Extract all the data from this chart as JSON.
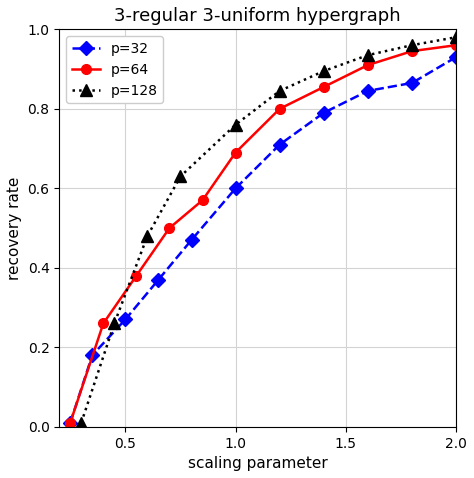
{
  "title": "3-regular 3-uniform hypergraph",
  "xlabel": "scaling parameter",
  "ylabel": "recovery rate",
  "xlim": [
    0.2,
    2.0
  ],
  "ylim": [
    0.0,
    1.0
  ],
  "series": [
    {
      "label": "p=32",
      "color": "blue",
      "linestyle": "--",
      "marker": "D",
      "markersize": 7,
      "x": [
        0.25,
        0.35,
        0.5,
        0.65,
        0.8,
        1.0,
        1.2,
        1.4,
        1.6,
        1.8,
        2.0
      ],
      "y": [
        0.01,
        0.18,
        0.27,
        0.37,
        0.47,
        0.6,
        0.71,
        0.79,
        0.845,
        0.865,
        0.93
      ]
    },
    {
      "label": "p=64",
      "color": "red",
      "linestyle": "-",
      "marker": "o",
      "markersize": 7,
      "x": [
        0.25,
        0.4,
        0.55,
        0.7,
        0.85,
        1.0,
        1.2,
        1.4,
        1.6,
        1.8,
        2.0
      ],
      "y": [
        0.01,
        0.26,
        0.38,
        0.5,
        0.57,
        0.69,
        0.8,
        0.855,
        0.91,
        0.945,
        0.96
      ]
    },
    {
      "label": "p=128",
      "color": "black",
      "linestyle": ":",
      "marker": "^",
      "markersize": 8,
      "x": [
        0.3,
        0.45,
        0.6,
        0.75,
        1.0,
        1.2,
        1.4,
        1.6,
        1.8,
        2.0
      ],
      "y": [
        0.01,
        0.26,
        0.48,
        0.63,
        0.76,
        0.845,
        0.895,
        0.935,
        0.96,
        0.98
      ]
    }
  ],
  "xticks": [
    0.5,
    1.0,
    1.5,
    2.0
  ],
  "yticks": [
    0.0,
    0.2,
    0.4,
    0.6,
    0.8,
    1.0
  ],
  "grid": true,
  "legend_loc": "upper left",
  "title_fontsize": 13,
  "label_fontsize": 11,
  "tick_fontsize": 10,
  "legend_fontsize": 10,
  "linewidth": 1.8,
  "figsize": [
    4.74,
    4.78
  ],
  "dpi": 100
}
